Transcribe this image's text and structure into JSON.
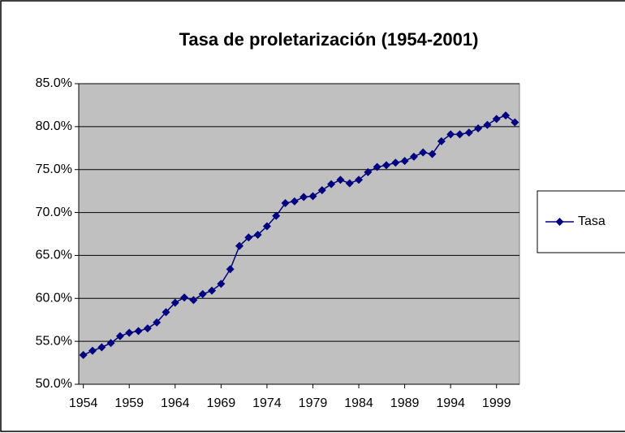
{
  "chart_data": {
    "type": "line",
    "title": "Tasa de proletarización (1954-2001)",
    "x": [
      1954,
      1955,
      1956,
      1957,
      1958,
      1959,
      1960,
      1961,
      1962,
      1963,
      1964,
      1965,
      1966,
      1967,
      1968,
      1969,
      1970,
      1971,
      1972,
      1973,
      1974,
      1975,
      1976,
      1977,
      1978,
      1979,
      1980,
      1981,
      1982,
      1983,
      1984,
      1985,
      1986,
      1987,
      1988,
      1989,
      1990,
      1991,
      1992,
      1993,
      1994,
      1995,
      1996,
      1997,
      1998,
      1999,
      2000,
      2001
    ],
    "series": [
      {
        "name": "Tasa",
        "color": "#000080",
        "values": [
          53.4,
          53.9,
          54.3,
          54.8,
          55.6,
          56.0,
          56.2,
          56.5,
          57.2,
          58.4,
          59.5,
          60.1,
          59.8,
          60.5,
          60.9,
          61.7,
          63.4,
          66.1,
          67.1,
          67.4,
          68.4,
          69.6,
          71.1,
          71.3,
          71.8,
          71.9,
          72.6,
          73.3,
          73.8,
          73.4,
          73.8,
          74.7,
          75.3,
          75.5,
          75.8,
          76.0,
          76.5,
          77.0,
          76.8,
          78.3,
          79.1,
          79.1,
          79.3,
          79.8,
          80.2,
          80.9,
          81.3,
          80.5
        ]
      }
    ],
    "xlim": [
      1953.5,
      2001.5
    ],
    "xticks": [
      1954,
      1959,
      1964,
      1969,
      1974,
      1979,
      1984,
      1989,
      1994,
      1999
    ],
    "ylim": [
      50,
      85
    ],
    "yticks": [
      {
        "value": 50,
        "label": "50.0%"
      },
      {
        "value": 55,
        "label": "55.0%"
      },
      {
        "value": 60,
        "label": "60.0%"
      },
      {
        "value": 65,
        "label": "65.0%"
      },
      {
        "value": 70,
        "label": "70.0%"
      },
      {
        "value": 75,
        "label": "75.0%"
      },
      {
        "value": 80,
        "label": "80.0%"
      },
      {
        "value": 85,
        "label": "85.0%"
      }
    ],
    "grid": true,
    "legend": "right",
    "plot_background": "#c0c0c0"
  }
}
